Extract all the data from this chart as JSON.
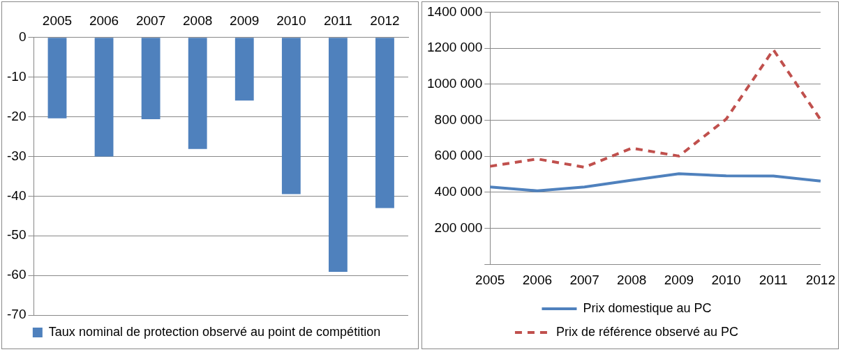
{
  "chart_data": [
    {
      "type": "bar",
      "categories": [
        "2005",
        "2006",
        "2007",
        "2008",
        "2009",
        "2010",
        "2011",
        "2012"
      ],
      "series": [
        {
          "name": "Taux nominal de protection observé au point de compétition",
          "color": "#4f81bd",
          "values": [
            -20.4,
            -30.0,
            -20.6,
            -28.1,
            -15.9,
            -39.5,
            -59.1,
            -43.0
          ]
        }
      ],
      "ylim": [
        -70,
        0
      ],
      "yticks": [
        -70,
        -60,
        -50,
        -40,
        -30,
        -20,
        -10,
        0
      ],
      "grid": "y",
      "legend": "bottom"
    },
    {
      "type": "line",
      "categories": [
        "2005",
        "2006",
        "2007",
        "2008",
        "2009",
        "2010",
        "2011",
        "2012"
      ],
      "series": [
        {
          "name": "Prix domestique au PC",
          "color": "#4f81bd",
          "line_style": "solid",
          "values": [
            429000,
            408000,
            429000,
            467000,
            503000,
            491000,
            490000,
            462000
          ]
        },
        {
          "name": "Prix de référence observé au PC",
          "color": "#c0504d",
          "line_style": "dashed",
          "values": [
            544000,
            585000,
            539000,
            645000,
            601000,
            806000,
            1191000,
            803000
          ]
        }
      ],
      "ylim": [
        0,
        1400000
      ],
      "yticks": [
        {
          "value": 0,
          "label": null
        },
        {
          "value": 200000,
          "label": "200 000"
        },
        {
          "value": 400000,
          "label": "400 000"
        },
        {
          "value": 600000,
          "label": "600 000"
        },
        {
          "value": 800000,
          "label": "800 000"
        },
        {
          "value": 1000000,
          "label": "1000 000"
        },
        {
          "value": 1200000,
          "label": "1200 000"
        },
        {
          "value": 1400000,
          "label": "1400 000"
        }
      ],
      "grid": "y",
      "legend": "bottom",
      "marker": "none"
    }
  ]
}
